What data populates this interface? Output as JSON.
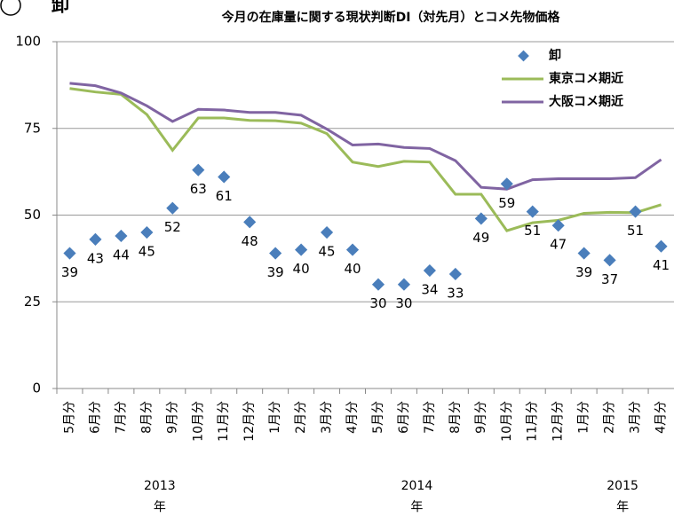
{
  "chart_data": {
    "type": "line",
    "panel_label": "卸",
    "title": "今月の在庫量に関する現状判断DI（対先月）とコメ先物価格",
    "categories": [
      "5月分",
      "6月分",
      "7月分",
      "8月分",
      "9月分",
      "10月分",
      "11月分",
      "12月分",
      "1月分",
      "2月分",
      "3月分",
      "4月分",
      "5月分",
      "6月分",
      "7月分",
      "8月分",
      "9月分",
      "10月分",
      "11月分",
      "12月分",
      "1月分",
      "2月分",
      "3月分",
      "4月分"
    ],
    "year_groups": [
      {
        "year": "2013",
        "unit": "年",
        "from": 0,
        "to": 7
      },
      {
        "year": "2014",
        "unit": "年",
        "from": 8,
        "to": 19
      },
      {
        "year": "2015",
        "unit": "年",
        "from": 20,
        "to": 23
      }
    ],
    "series": [
      {
        "name": "卸",
        "kind": "marker",
        "color": "#4a7ebb",
        "values": [
          39,
          43,
          44,
          45,
          52,
          63,
          61,
          48,
          39,
          40,
          45,
          40,
          30,
          30,
          34,
          33,
          49,
          59,
          51,
          47,
          39,
          37,
          51,
          41
        ]
      },
      {
        "name": "東京コメ期近",
        "kind": "line",
        "color": "#9bbb59",
        "values": [
          86.5,
          85.5,
          84.8,
          79,
          68.7,
          78,
          78,
          77.3,
          77.2,
          76.5,
          73.5,
          65.3,
          64,
          65.5,
          65.3,
          56,
          56,
          45.5,
          47.8,
          48.5,
          50.5,
          50.8,
          50.7,
          53
        ]
      },
      {
        "name": "大阪コメ期近",
        "kind": "line",
        "color": "#8064a2",
        "values": [
          88,
          87.3,
          85.2,
          81.5,
          77,
          80.5,
          80.3,
          79.6,
          79.6,
          78.8,
          74.8,
          70.2,
          70.5,
          69.5,
          69.2,
          65.7,
          58,
          57.5,
          60.2,
          60.5,
          60.5,
          60.5,
          60.8,
          66
        ]
      }
    ],
    "ylim": [
      0,
      100
    ],
    "yticks": [
      0,
      25,
      50,
      75,
      100
    ],
    "grid": true,
    "legend": "top-right"
  }
}
